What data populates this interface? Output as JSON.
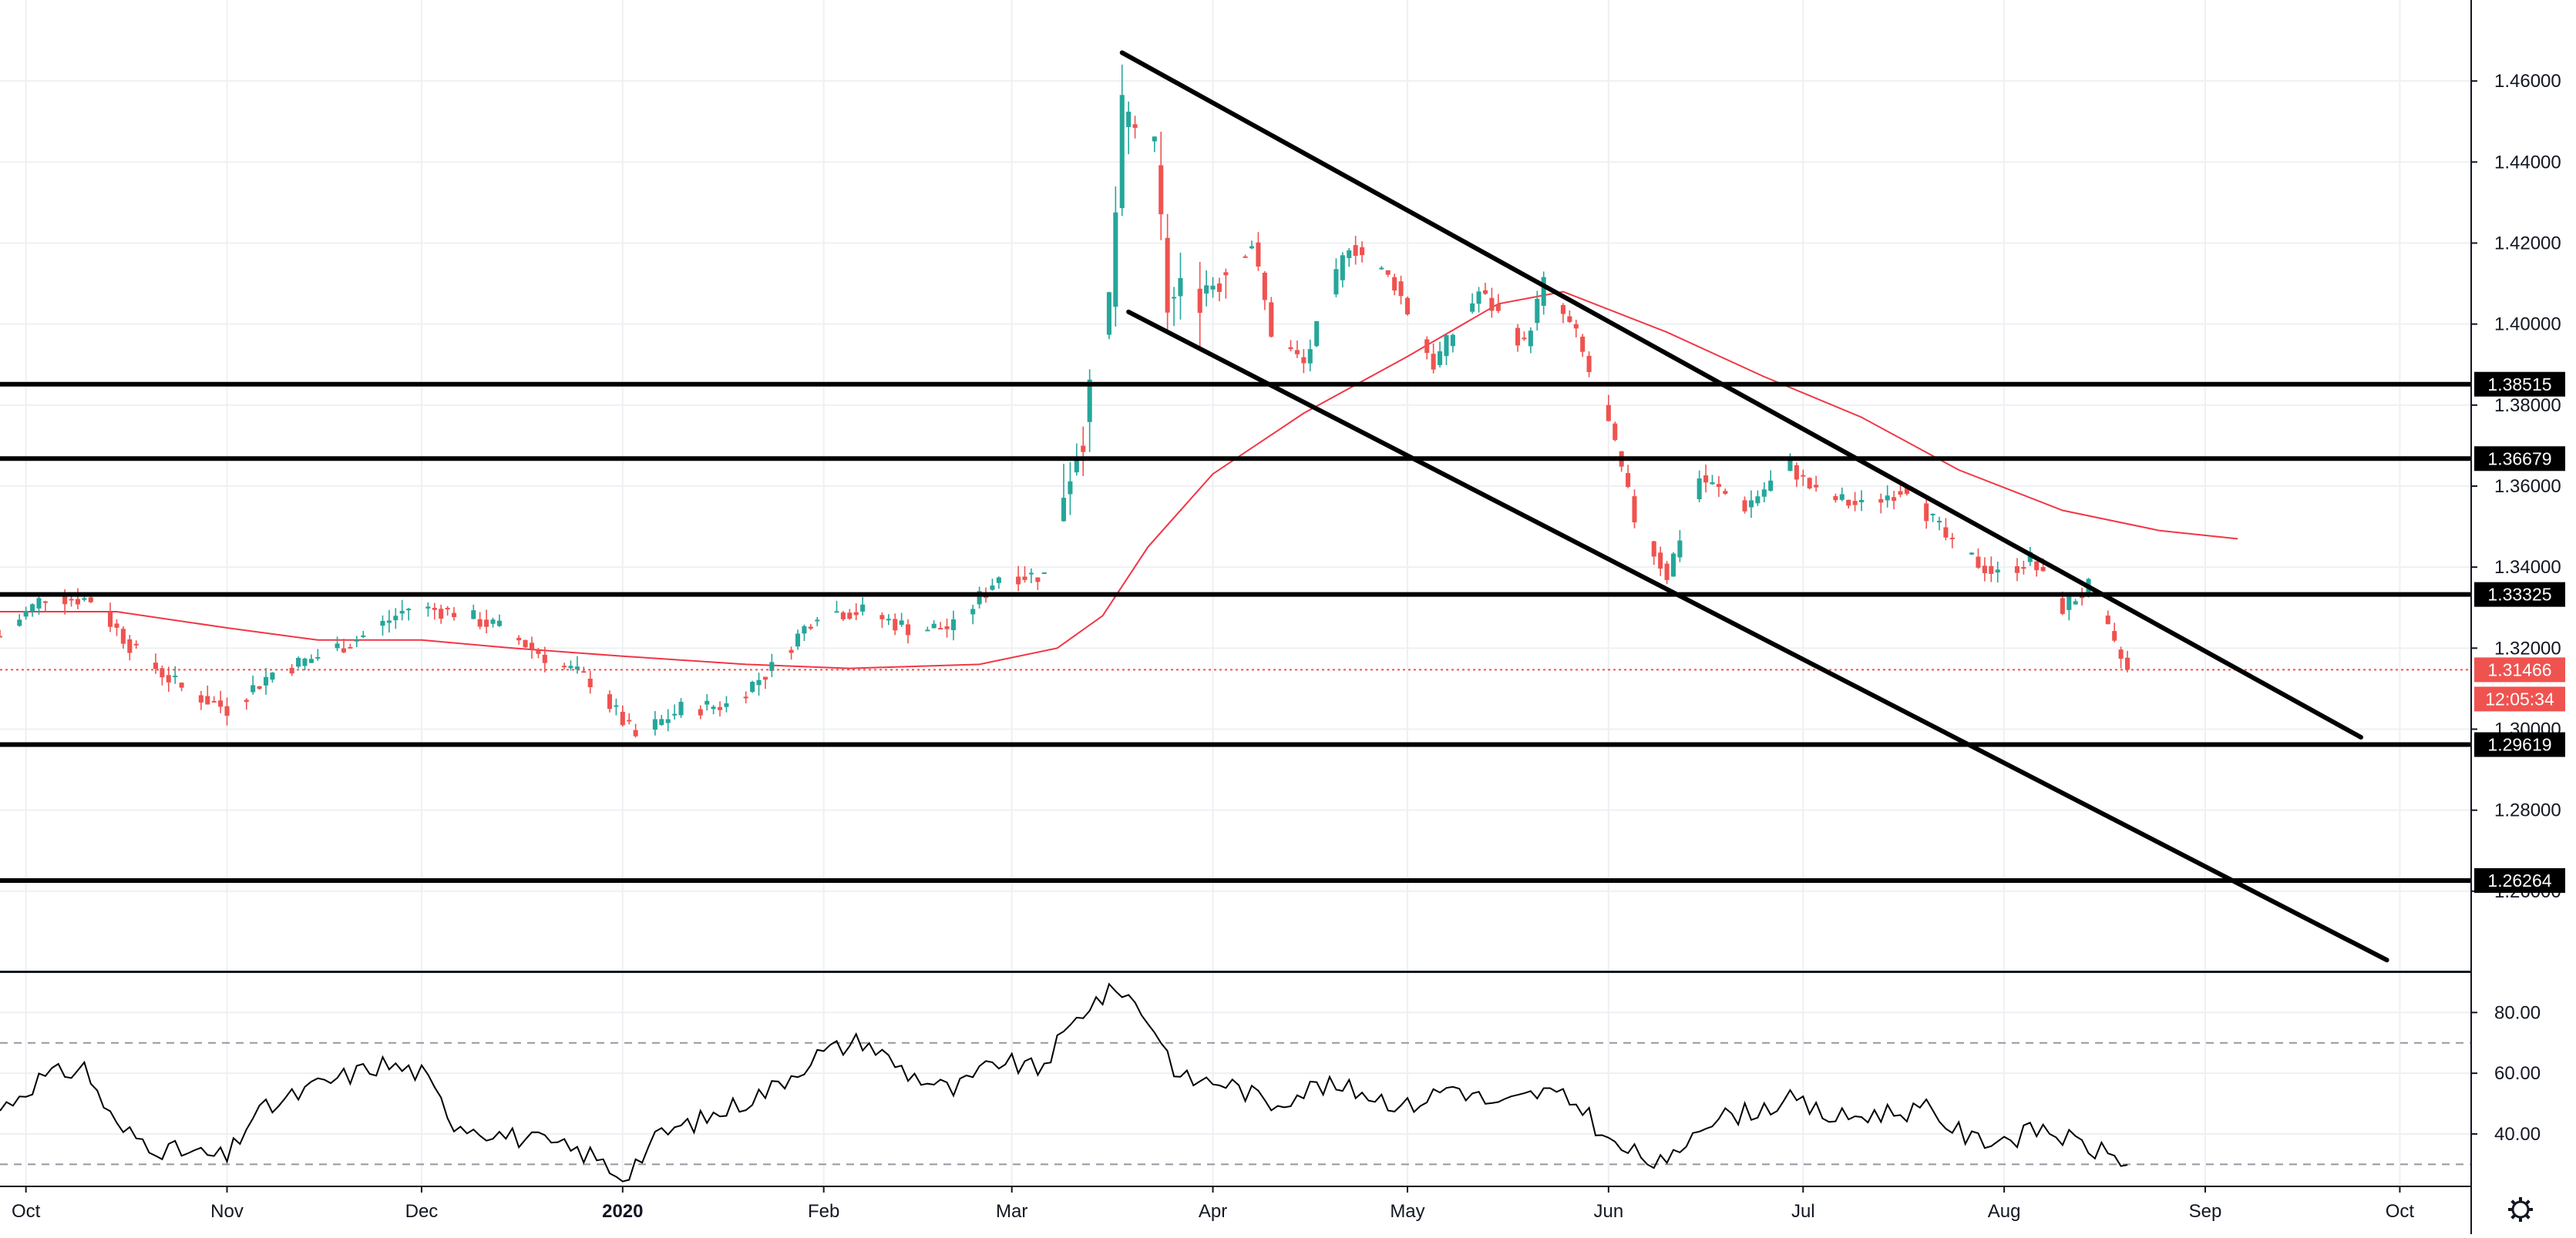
{
  "colors": {
    "up": "#26a69a",
    "down": "#ef5350",
    "ma": "#f23645",
    "levels": "#000000",
    "grid": "#eef0f3",
    "osc": "#000000",
    "badge_level": "#000000",
    "badge_price": "#ef5350",
    "background": "#ffffff"
  },
  "icons": {
    "settings": "gear-icon"
  },
  "chart_data": [
    {
      "type": "candlestick",
      "title": "",
      "xlabel": "",
      "ylabel": "",
      "ylim": [
        1.24,
        1.48
      ],
      "x_range": [
        "2019-09-27",
        "2020-10-12"
      ],
      "y_axis_ticks": [
        "1.46000",
        "1.44000",
        "1.42000",
        "1.40000",
        "1.38000",
        "1.36000",
        "1.34000",
        "1.32000",
        "1.30000",
        "1.28000",
        "1.26000"
      ],
      "x_axis_ticks": [
        {
          "date": "2019-10-01",
          "label": "Oct",
          "bold": false
        },
        {
          "date": "2019-11-01",
          "label": "Nov",
          "bold": false
        },
        {
          "date": "2019-12-01",
          "label": "Dec",
          "bold": false
        },
        {
          "date": "2020-01-01",
          "label": "2020",
          "bold": true
        },
        {
          "date": "2020-02-01",
          "label": "Feb",
          "bold": false
        },
        {
          "date": "2020-03-01",
          "label": "Mar",
          "bold": false
        },
        {
          "date": "2020-04-01",
          "label": "Apr",
          "bold": false
        },
        {
          "date": "2020-05-01",
          "label": "May",
          "bold": false
        },
        {
          "date": "2020-06-01",
          "label": "Jun",
          "bold": false
        },
        {
          "date": "2020-07-01",
          "label": "Jul",
          "bold": false
        },
        {
          "date": "2020-08-01",
          "label": "Aug",
          "bold": false
        },
        {
          "date": "2020-09-01",
          "label": "Sep",
          "bold": false
        },
        {
          "date": "2020-10-01",
          "label": "Oct",
          "bold": false
        }
      ],
      "price_path": [
        [
          "2019-09-27",
          1.323
        ],
        [
          "2019-10-04",
          1.333
        ],
        [
          "2019-10-11",
          1.332
        ],
        [
          "2019-10-18",
          1.319
        ],
        [
          "2019-10-25",
          1.31
        ],
        [
          "2019-11-01",
          1.305
        ],
        [
          "2019-11-08",
          1.314
        ],
        [
          "2019-11-15",
          1.318
        ],
        [
          "2019-11-22",
          1.323
        ],
        [
          "2019-11-29",
          1.33
        ],
        [
          "2019-12-06",
          1.329
        ],
        [
          "2019-12-13",
          1.325
        ],
        [
          "2019-12-20",
          1.318
        ],
        [
          "2019-12-27",
          1.312
        ],
        [
          "2020-01-03",
          1.298
        ],
        [
          "2020-01-10",
          1.305
        ],
        [
          "2020-01-17",
          1.306
        ],
        [
          "2020-01-24",
          1.315
        ],
        [
          "2020-01-31",
          1.329
        ],
        [
          "2020-02-07",
          1.329
        ],
        [
          "2020-02-14",
          1.325
        ],
        [
          "2020-02-21",
          1.325
        ],
        [
          "2020-02-28",
          1.338
        ],
        [
          "2020-03-06",
          1.338
        ],
        [
          "2020-03-09",
          1.36
        ],
        [
          "2020-03-13",
          1.38
        ],
        [
          "2020-03-16",
          1.405
        ],
        [
          "2020-03-18",
          1.45
        ],
        [
          "2020-03-20",
          1.45
        ],
        [
          "2020-03-23",
          1.44
        ],
        [
          "2020-03-25",
          1.405
        ],
        [
          "2020-03-31",
          1.41
        ],
        [
          "2020-04-07",
          1.42
        ],
        [
          "2020-04-10",
          1.398
        ],
        [
          "2020-04-15",
          1.39
        ],
        [
          "2020-04-22",
          1.42
        ],
        [
          "2020-04-29",
          1.41
        ],
        [
          "2020-05-05",
          1.39
        ],
        [
          "2020-05-12",
          1.408
        ],
        [
          "2020-05-19",
          1.395
        ],
        [
          "2020-05-22",
          1.41
        ],
        [
          "2020-05-27",
          1.397
        ],
        [
          "2020-06-01",
          1.375
        ],
        [
          "2020-06-05",
          1.352
        ],
        [
          "2020-06-10",
          1.338
        ],
        [
          "2020-06-15",
          1.362
        ],
        [
          "2020-06-22",
          1.355
        ],
        [
          "2020-06-29",
          1.365
        ],
        [
          "2020-07-03",
          1.358
        ],
        [
          "2020-07-10",
          1.355
        ],
        [
          "2020-07-17",
          1.36
        ],
        [
          "2020-07-24",
          1.345
        ],
        [
          "2020-07-31",
          1.338
        ],
        [
          "2020-08-05",
          1.342
        ],
        [
          "2020-08-10",
          1.33
        ],
        [
          "2020-08-14",
          1.335
        ],
        [
          "2020-08-18",
          1.32
        ],
        [
          "2020-08-20",
          1.3147
        ]
      ],
      "sma_path": [
        [
          "2019-09-27",
          1.329
        ],
        [
          "2019-10-15",
          1.329
        ],
        [
          "2019-11-01",
          1.325
        ],
        [
          "2019-11-15",
          1.322
        ],
        [
          "2019-12-01",
          1.322
        ],
        [
          "2019-12-15",
          1.32
        ],
        [
          "2020-01-01",
          1.318
        ],
        [
          "2020-01-20",
          1.316
        ],
        [
          "2020-02-05",
          1.315
        ],
        [
          "2020-02-25",
          1.316
        ],
        [
          "2020-03-08",
          1.32
        ],
        [
          "2020-03-15",
          1.328
        ],
        [
          "2020-03-22",
          1.345
        ],
        [
          "2020-04-01",
          1.363
        ],
        [
          "2020-04-15",
          1.378
        ],
        [
          "2020-05-01",
          1.392
        ],
        [
          "2020-05-15",
          1.405
        ],
        [
          "2020-05-25",
          1.408
        ],
        [
          "2020-06-10",
          1.398
        ],
        [
          "2020-06-25",
          1.387
        ],
        [
          "2020-07-10",
          1.377
        ],
        [
          "2020-07-25",
          1.364
        ],
        [
          "2020-08-10",
          1.354
        ],
        [
          "2020-08-25",
          1.349
        ],
        [
          "2020-09-06",
          1.347
        ]
      ],
      "horizontal_levels": [
        "1.38515",
        "1.36679",
        "1.33325",
        "1.29619",
        "1.26264"
      ],
      "trendlines": [
        {
          "name": "",
          "from": [
            "2020-03-18",
            1.467
          ],
          "to": [
            "2020-09-25",
            1.298
          ]
        },
        {
          "name": "",
          "from": [
            "2020-03-19",
            1.403
          ],
          "to": [
            "2020-09-29",
            1.243
          ]
        }
      ],
      "last_price": {
        "value": "1.31466",
        "countdown": "12:05:34",
        "date": "2020-08-20"
      }
    },
    {
      "type": "line",
      "title": "",
      "ylim": [
        24,
        92
      ],
      "y_axis_ticks": [
        "80.00",
        "60.00",
        "40.00"
      ],
      "dashed_levels": [
        70,
        30
      ],
      "grid": true,
      "series": [
        {
          "values": [
            [
              "2019-09-27",
              48
            ],
            [
              "2019-10-03",
              58
            ],
            [
              "2019-10-10",
              62
            ],
            [
              "2019-10-15",
              42
            ],
            [
              "2019-10-22",
              35
            ],
            [
              "2019-11-01",
              32
            ],
            [
              "2019-11-05",
              46
            ],
            [
              "2019-11-15",
              56
            ],
            [
              "2019-11-25",
              63
            ],
            [
              "2019-12-01",
              60
            ],
            [
              "2019-12-06",
              44
            ],
            [
              "2019-12-13",
              40
            ],
            [
              "2019-12-20",
              37
            ],
            [
              "2019-12-27",
              33
            ],
            [
              "2020-01-01",
              26
            ],
            [
              "2020-01-07",
              40
            ],
            [
              "2020-01-15",
              46
            ],
            [
              "2020-01-24",
              55
            ],
            [
              "2020-01-31",
              66
            ],
            [
              "2020-02-07",
              71
            ],
            [
              "2020-02-14",
              60
            ],
            [
              "2020-02-21",
              54
            ],
            [
              "2020-02-28",
              64
            ],
            [
              "2020-03-05",
              61
            ],
            [
              "2020-03-09",
              72
            ],
            [
              "2020-03-13",
              83
            ],
            [
              "2020-03-18",
              88
            ],
            [
              "2020-03-23",
              75
            ],
            [
              "2020-03-27",
              58
            ],
            [
              "2020-04-03",
              57
            ],
            [
              "2020-04-10",
              50
            ],
            [
              "2020-04-17",
              56
            ],
            [
              "2020-04-24",
              54
            ],
            [
              "2020-05-01",
              49
            ],
            [
              "2020-05-08",
              56
            ],
            [
              "2020-05-15",
              49
            ],
            [
              "2020-05-22",
              54
            ],
            [
              "2020-05-28",
              49
            ],
            [
              "2020-06-01",
              37
            ],
            [
              "2020-06-10",
              29
            ],
            [
              "2020-06-15",
              44
            ],
            [
              "2020-06-22",
              47
            ],
            [
              "2020-06-29",
              51
            ],
            [
              "2020-07-06",
              45
            ],
            [
              "2020-07-13",
              47
            ],
            [
              "2020-07-20",
              48
            ],
            [
              "2020-07-27",
              38
            ],
            [
              "2020-08-03",
              39
            ],
            [
              "2020-08-07",
              42
            ],
            [
              "2020-08-12",
              37
            ],
            [
              "2020-08-20",
              31
            ]
          ]
        }
      ]
    }
  ]
}
